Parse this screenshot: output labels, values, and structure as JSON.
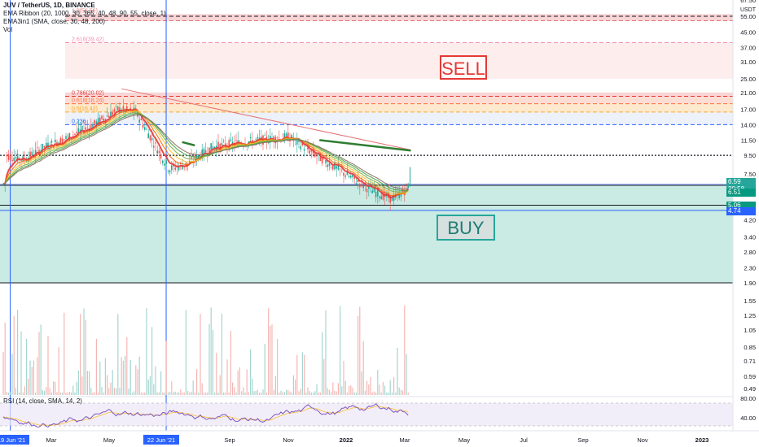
{
  "legend": {
    "title": "JUV / TetherUS, 1D, BINANCE",
    "ema_ribbon": "EMA Ribbon (20, 1000, 30, 365, 40, 48, 90, 55, close, 1)",
    "ema3in1": "EMA3in1 (SMA, close, 30, 48, 200)",
    "vol": "Vol"
  },
  "rsi_label": "RSI (14, close, SMA, 14, 2)",
  "annotations": {
    "sell": "SELL",
    "buy": "BUY"
  },
  "fib_labels": [
    "1.0(56.56)",
    "2.618(39.42)",
    "0.786(20.02)",
    "0.618(18.24)",
    "0.5(16.42)",
    "0.236"
  ],
  "price_axis": {
    "currency": "USDT",
    "ticks": [
      "67.50",
      "55.00",
      "45.00",
      "37.00",
      "31.00",
      "25.00",
      "21.00",
      "17.00",
      "14.00",
      "11.50",
      "9.50",
      "7.50",
      "6.20",
      "5.06",
      "4.74",
      "4.20",
      "3.40",
      "2.80",
      "2.30",
      "1.90",
      "1.55",
      "1.25",
      "1.05",
      "0.85",
      "0.71",
      "0.59",
      "0.49"
    ]
  },
  "price_tags": [
    {
      "label": "6.59",
      "color": "#26a69a"
    },
    {
      "label": "30:58",
      "color": "#26a69a"
    },
    {
      "label": "6.51",
      "color": "#089981"
    },
    {
      "label": "5.06",
      "color": "#089981"
    },
    {
      "label": "4.74",
      "color": "#2962ff"
    }
  ],
  "rsi_axis": {
    "ticks": [
      "80.00",
      "40.00"
    ]
  },
  "time_axis": {
    "labels": [
      "19 Jun '21",
      "Mar",
      "May",
      "22 Jun '21",
      "Sep",
      "Nov",
      "2022",
      "Mar",
      "May",
      "Jul",
      "Sep",
      "Nov",
      "2023"
    ]
  },
  "colors": {
    "sell_box": "#e53935",
    "buy_box": "#26a69a",
    "vline": "#2962ff",
    "trendline": "#e57373",
    "candle_up": "#26a69a",
    "candle_down": "#ef5350"
  },
  "chart_data": {
    "type": "candlestick",
    "title": "JUV / TetherUS, 1D, BINANCE",
    "y_scale": "log",
    "ylim": [
      0.45,
      70
    ],
    "price_path": [
      {
        "date": "2021-01-01",
        "close": 9.5
      },
      {
        "date": "2021-01-20",
        "close": 9.0
      },
      {
        "date": "2021-02-10",
        "close": 10.5
      },
      {
        "date": "2021-03-10",
        "close": 12.0
      },
      {
        "date": "2021-04-05",
        "close": 14.0
      },
      {
        "date": "2021-05-01",
        "close": 17.0
      },
      {
        "date": "2021-05-20",
        "close": 16.5
      },
      {
        "date": "2021-06-05",
        "close": 12.0
      },
      {
        "date": "2021-06-25",
        "close": 8.0
      },
      {
        "date": "2021-07-15",
        "close": 8.5
      },
      {
        "date": "2021-08-10",
        "close": 10.5
      },
      {
        "date": "2021-09-01",
        "close": 11.0
      },
      {
        "date": "2021-10-01",
        "close": 11.5
      },
      {
        "date": "2021-11-01",
        "close": 12.0
      },
      {
        "date": "2021-12-01",
        "close": 9.5
      },
      {
        "date": "2022-01-01",
        "close": 7.5
      },
      {
        "date": "2022-02-01",
        "close": 6.0
      },
      {
        "date": "2022-02-20",
        "close": 5.5
      },
      {
        "date": "2022-03-05",
        "close": 6.0
      },
      {
        "date": "2022-03-10",
        "close": 6.59
      }
    ],
    "horizontal_levels": [
      55.0,
      14.0,
      9.5,
      6.51,
      5.06,
      4.74
    ],
    "sell_zone": [
      17.0,
      21.0
    ],
    "buy_zone": [
      1.9,
      6.51
    ]
  }
}
